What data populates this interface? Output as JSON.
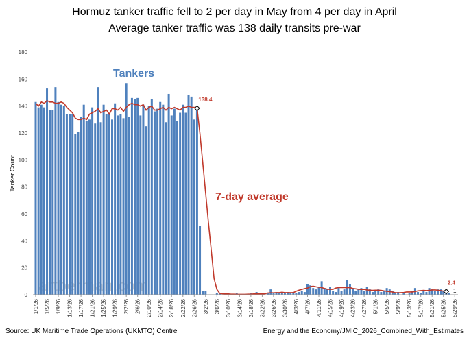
{
  "chart_data": {
    "type": "bar_line",
    "title": "Hormuz tanker traffic fell to 2 per day in May from 4 per day in April",
    "subtitle": "Average tanker traffic was 138 daily transits pre-war",
    "y_label": "Tanker Count",
    "source": "Source: UK Maritime Trade Operations (UKMTO) Centre",
    "credit": "Energy and the Economy/JMIC_2026_Combined_With_Estimates",
    "watermark": "artberman.com",
    "ylim": [
      0,
      180
    ],
    "yticks": [
      0,
      20,
      40,
      60,
      80,
      100,
      120,
      140,
      160,
      180
    ],
    "grid": false,
    "categories": [
      "1/1/26",
      null,
      null,
      null,
      "1/5/26",
      null,
      null,
      null,
      "1/9/26",
      null,
      null,
      null,
      "1/13/26",
      null,
      null,
      null,
      "1/17/26",
      null,
      null,
      null,
      "1/21/26",
      null,
      null,
      null,
      "1/25/26",
      null,
      null,
      null,
      "1/29/26",
      null,
      null,
      null,
      "2/2/26",
      null,
      null,
      null,
      "2/6/26",
      null,
      null,
      null,
      "2/10/26",
      null,
      null,
      null,
      "2/14/26",
      null,
      null,
      null,
      "2/18/26",
      null,
      null,
      null,
      "2/22/26",
      null,
      null,
      null,
      "2/26/26",
      null,
      null,
      null,
      "3/2/26",
      null,
      null,
      null,
      "3/6/26",
      null,
      null,
      null,
      "3/10/26",
      null,
      null,
      null,
      "3/14/26",
      null,
      null,
      null,
      "3/18/26",
      null,
      null,
      null,
      "3/22/26",
      null,
      null,
      null,
      "3/26/26",
      null,
      null,
      null,
      "3/30/26",
      null,
      null,
      null,
      "4/3/26",
      null,
      null,
      null,
      "4/7/26",
      null,
      null,
      null,
      "4/11/26",
      null,
      null,
      null,
      "4/15/26",
      null,
      null,
      null,
      "4/19/26",
      null,
      null,
      null,
      "4/23/26",
      null,
      null,
      null,
      "4/27/26",
      null,
      null,
      null,
      "5/1/26",
      null,
      null,
      null,
      "5/5/26",
      null,
      null,
      null,
      "5/9/26",
      null,
      null,
      null,
      "5/13/26",
      null,
      null,
      null,
      "5/17/26",
      null,
      null,
      null,
      "5/21/26",
      null,
      null,
      null,
      "5/25/26",
      null,
      null,
      null,
      "5/29/26"
    ],
    "series": [
      {
        "name": "Tankers",
        "kind": "bar",
        "color": "#4f81bd",
        "values": [
          143,
          139,
          141,
          139,
          153,
          137,
          137,
          154,
          143,
          141,
          140,
          134,
          134,
          134,
          119,
          121,
          132,
          141,
          129,
          130,
          139,
          127,
          154,
          128,
          141,
          134,
          135,
          130,
          142,
          133,
          134,
          131,
          157,
          132,
          146,
          145,
          146,
          133,
          141,
          125,
          140,
          145,
          136,
          138,
          143,
          141,
          128,
          149,
          133,
          138,
          129,
          135,
          141,
          135,
          148,
          147,
          130,
          140,
          51,
          3,
          3,
          0,
          0,
          0,
          1,
          1,
          0,
          0,
          1,
          0,
          0,
          1,
          0,
          0,
          0,
          0,
          1,
          0,
          2,
          0,
          1,
          0,
          1,
          4,
          1,
          2,
          1,
          2,
          1,
          2,
          1,
          2,
          1,
          2,
          3,
          2,
          8,
          7,
          5,
          4,
          6,
          10,
          5,
          4,
          6,
          3,
          2,
          5,
          3,
          4,
          11,
          8,
          5,
          3,
          4,
          5,
          3,
          6,
          4,
          2,
          3,
          4,
          2,
          3,
          5,
          4,
          3,
          1,
          2,
          0,
          1,
          0,
          1,
          3,
          5,
          2,
          1,
          3,
          2,
          5,
          4,
          3,
          4,
          4,
          3,
          2,
          1,
          null,
          null
        ]
      },
      {
        "name": "7-day average",
        "kind": "line",
        "color": "#c0392b",
        "values": [
          142,
          140,
          143,
          142,
          144,
          143,
          143,
          142,
          142,
          143,
          142,
          139,
          137,
          135,
          131,
          130,
          130,
          131,
          130,
          134,
          135,
          136,
          138,
          135,
          136,
          137,
          134,
          138,
          138,
          137,
          139,
          136,
          139,
          141,
          142,
          141,
          141,
          140,
          141,
          137,
          139,
          140,
          137,
          137,
          138,
          139,
          137,
          139,
          138,
          139,
          138,
          137,
          139,
          139,
          140,
          139,
          139,
          138.4,
          120,
          98,
          76,
          54,
          33,
          12,
          4,
          1,
          0.7,
          0.6,
          0.6,
          0.4,
          0.4,
          0.3,
          0.3,
          0.3,
          0.3,
          0.4,
          0.4,
          0.6,
          0.6,
          0.6,
          0.6,
          0.7,
          1.3,
          1.4,
          1.4,
          1.6,
          1.6,
          1.9,
          1.6,
          1.6,
          1.6,
          1.6,
          2.6,
          3.4,
          4,
          4.6,
          5,
          6,
          6.4,
          5.9,
          5.6,
          5.4,
          4.7,
          4.1,
          4,
          4,
          5,
          5.4,
          5.4,
          5.4,
          5.3,
          5.4,
          4.7,
          4.4,
          4.1,
          3.9,
          4,
          3.6,
          3.4,
          3.3,
          3.4,
          3.4,
          3.3,
          2.9,
          2.6,
          2.3,
          2,
          1.6,
          1.4,
          1.6,
          1.7,
          2.1,
          2.1,
          2.1,
          2.4,
          2.9,
          3.1,
          3.3,
          3.1,
          3.3,
          3.6,
          3.6,
          3.4,
          3.1,
          2.7,
          2.4,
          null,
          null,
          null
        ]
      }
    ]
  }
}
